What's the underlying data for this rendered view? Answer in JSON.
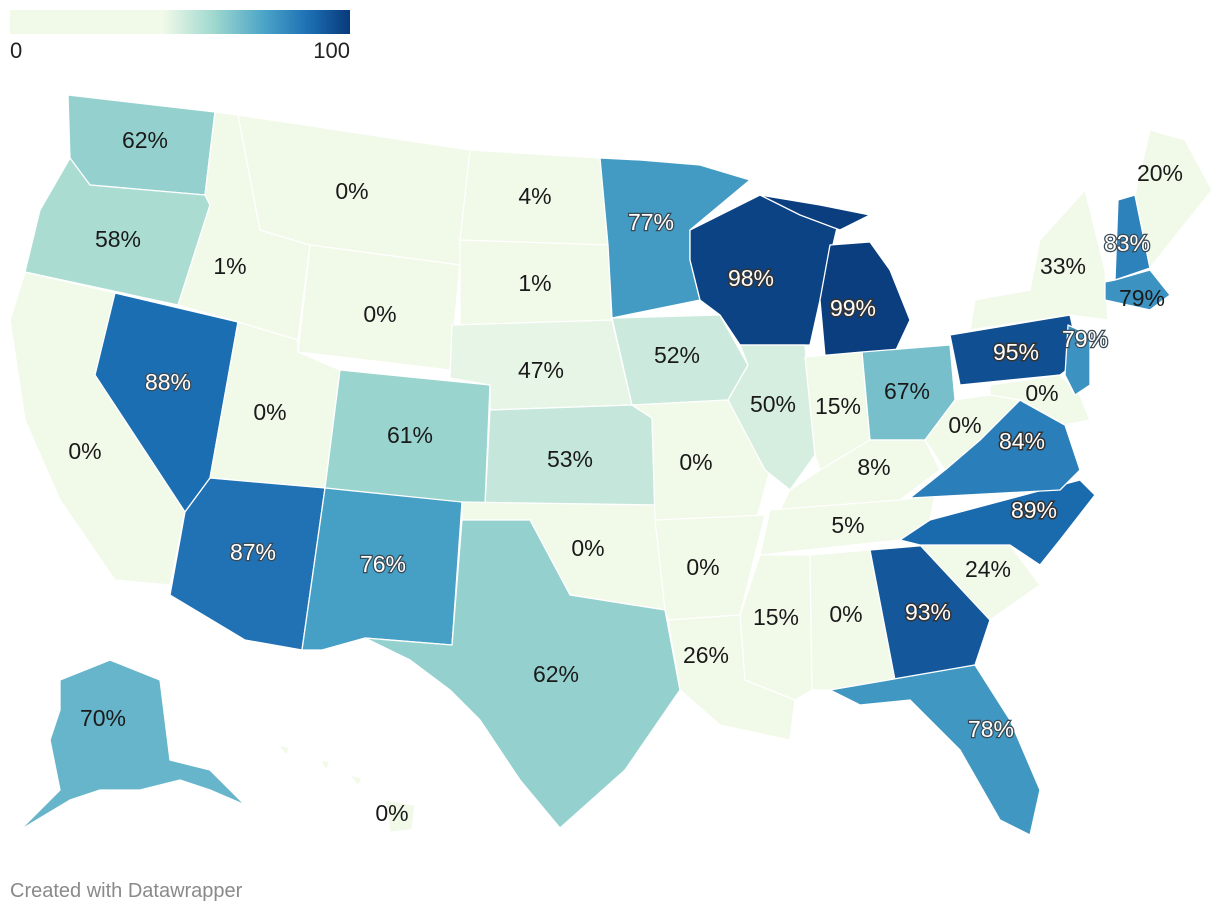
{
  "legend": {
    "min": "0",
    "max": "100"
  },
  "credit": "Created with Datawrapper",
  "colors": {
    "scale_low": "#f1f9e9",
    "scale_mid": "#9fd8cf",
    "scale_high": "#083a7a",
    "border": "#ffffff"
  },
  "states": [
    {
      "id": "WA",
      "label": "62%",
      "value": 62
    },
    {
      "id": "OR",
      "label": "58%",
      "value": 58
    },
    {
      "id": "CA",
      "label": "0%",
      "value": 0
    },
    {
      "id": "NV",
      "label": "88%",
      "value": 88
    },
    {
      "id": "ID",
      "label": "1%",
      "value": 1
    },
    {
      "id": "MT",
      "label": "0%",
      "value": 0
    },
    {
      "id": "WY",
      "label": "0%",
      "value": 0
    },
    {
      "id": "UT",
      "label": "0%",
      "value": 0
    },
    {
      "id": "AZ",
      "label": "87%",
      "value": 87
    },
    {
      "id": "CO",
      "label": "61%",
      "value": 61
    },
    {
      "id": "NM",
      "label": "76%",
      "value": 76
    },
    {
      "id": "ND",
      "label": "4%",
      "value": 4
    },
    {
      "id": "SD",
      "label": "1%",
      "value": 1
    },
    {
      "id": "NE",
      "label": "47%",
      "value": 47
    },
    {
      "id": "KS",
      "label": "53%",
      "value": 53
    },
    {
      "id": "OK",
      "label": "0%",
      "value": 0
    },
    {
      "id": "TX",
      "label": "62%",
      "value": 62
    },
    {
      "id": "MN",
      "label": "77%",
      "value": 77
    },
    {
      "id": "IA",
      "label": "52%",
      "value": 52
    },
    {
      "id": "MO",
      "label": "0%",
      "value": 0
    },
    {
      "id": "AR",
      "label": "0%",
      "value": 0
    },
    {
      "id": "LA",
      "label": "26%",
      "value": 26
    },
    {
      "id": "WI",
      "label": "98%",
      "value": 98
    },
    {
      "id": "IL",
      "label": "50%",
      "value": 50
    },
    {
      "id": "MI",
      "label": "99%",
      "value": 99
    },
    {
      "id": "IN",
      "label": "15%",
      "value": 15
    },
    {
      "id": "OH",
      "label": "67%",
      "value": 67
    },
    {
      "id": "KY",
      "label": "8%",
      "value": 8
    },
    {
      "id": "TN",
      "label": "5%",
      "value": 5
    },
    {
      "id": "MS",
      "label": "15%",
      "value": 15
    },
    {
      "id": "AL",
      "label": "0%",
      "value": 0
    },
    {
      "id": "GA",
      "label": "93%",
      "value": 93
    },
    {
      "id": "FL",
      "label": "78%",
      "value": 78
    },
    {
      "id": "SC",
      "label": "24%",
      "value": 24
    },
    {
      "id": "NC",
      "label": "89%",
      "value": 89
    },
    {
      "id": "VA",
      "label": "84%",
      "value": 84
    },
    {
      "id": "WV",
      "label": "0%",
      "value": 0
    },
    {
      "id": "PA",
      "label": "95%",
      "value": 95
    },
    {
      "id": "MD",
      "label": "0%",
      "value": 0
    },
    {
      "id": "NJ",
      "label": "79%",
      "value": 79
    },
    {
      "id": "NY",
      "label": "33%",
      "value": 33
    },
    {
      "id": "NH",
      "label": "83%",
      "value": 83
    },
    {
      "id": "MA",
      "label": "79%",
      "value": 79
    },
    {
      "id": "ME",
      "label": "20%",
      "value": 20
    },
    {
      "id": "AK",
      "label": "70%",
      "value": 70
    },
    {
      "id": "HI",
      "label": "0%",
      "value": 0
    }
  ]
}
